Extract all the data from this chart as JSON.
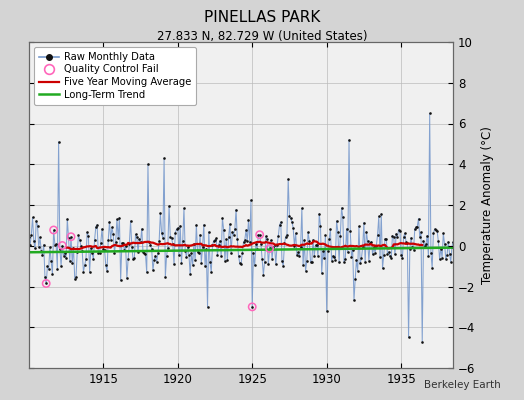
{
  "title": "PINELLAS PARK",
  "subtitle": "27.833 N, 82.729 W (United States)",
  "ylabel": "Temperature Anomaly (°C)",
  "attribution": "Berkeley Earth",
  "year_start": 1910.0,
  "year_end": 1938.5,
  "ylim": [
    -6,
    10
  ],
  "yticks": [
    -6,
    -4,
    -2,
    0,
    2,
    4,
    6,
    8,
    10
  ],
  "xticks": [
    1915,
    1920,
    1925,
    1930,
    1935
  ],
  "fig_bg_color": "#d4d4d4",
  "plot_bg_color": "#f0f0f0",
  "raw_color": "#7799cc",
  "dot_color": "#111111",
  "qc_color": "#ff66bb",
  "ma_color": "#cc0000",
  "trend_color": "#22aa22",
  "trend_intercept": -0.32,
  "trend_slope": 0.008
}
